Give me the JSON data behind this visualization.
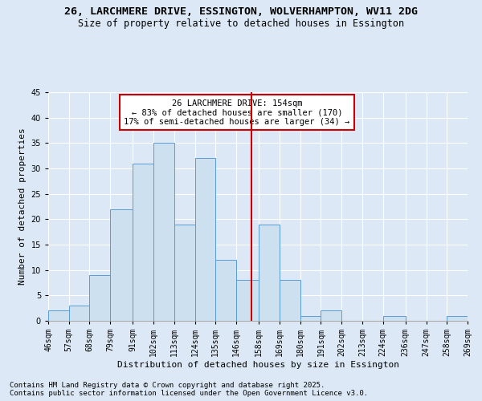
{
  "title1": "26, LARCHMERE DRIVE, ESSINGTON, WOLVERHAMPTON, WV11 2DG",
  "title2": "Size of property relative to detached houses in Essington",
  "xlabel": "Distribution of detached houses by size in Essington",
  "ylabel": "Number of detached properties",
  "bar_values": [
    2,
    3,
    9,
    22,
    31,
    35,
    19,
    32,
    12,
    8,
    19,
    8,
    1,
    2,
    0,
    0,
    1,
    0,
    0,
    1
  ],
  "bin_edges": [
    46,
    57,
    68,
    79,
    91,
    102,
    113,
    124,
    135,
    146,
    158,
    169,
    180,
    191,
    202,
    213,
    224,
    236,
    247,
    258,
    269
  ],
  "tick_labels": [
    "46sqm",
    "57sqm",
    "68sqm",
    "79sqm",
    "91sqm",
    "102sqm",
    "113sqm",
    "124sqm",
    "135sqm",
    "146sqm",
    "158sqm",
    "169sqm",
    "180sqm",
    "191sqm",
    "202sqm",
    "213sqm",
    "224sqm",
    "236sqm",
    "247sqm",
    "258sqm",
    "269sqm"
  ],
  "bar_color": "#cce0f0",
  "bar_edge_color": "#5b9bd5",
  "background_color": "#dce8f5",
  "grid_color": "#ffffff",
  "vline_x": 154,
  "vline_color": "#cc0000",
  "annotation_title": "26 LARCHMERE DRIVE: 154sqm",
  "annotation_line1": "← 83% of detached houses are smaller (170)",
  "annotation_line2": "17% of semi-detached houses are larger (34) →",
  "annotation_box_color": "#ffffff",
  "annotation_box_edge_color": "#cc0000",
  "ylim": [
    0,
    45
  ],
  "yticks": [
    0,
    5,
    10,
    15,
    20,
    25,
    30,
    35,
    40,
    45
  ],
  "footnote1": "Contains HM Land Registry data © Crown copyright and database right 2025.",
  "footnote2": "Contains public sector information licensed under the Open Government Licence v3.0.",
  "title_fontsize": 9.5,
  "subtitle_fontsize": 8.5,
  "axis_label_fontsize": 8,
  "tick_fontsize": 7,
  "annotation_fontsize": 7.5,
  "footnote_fontsize": 6.5
}
